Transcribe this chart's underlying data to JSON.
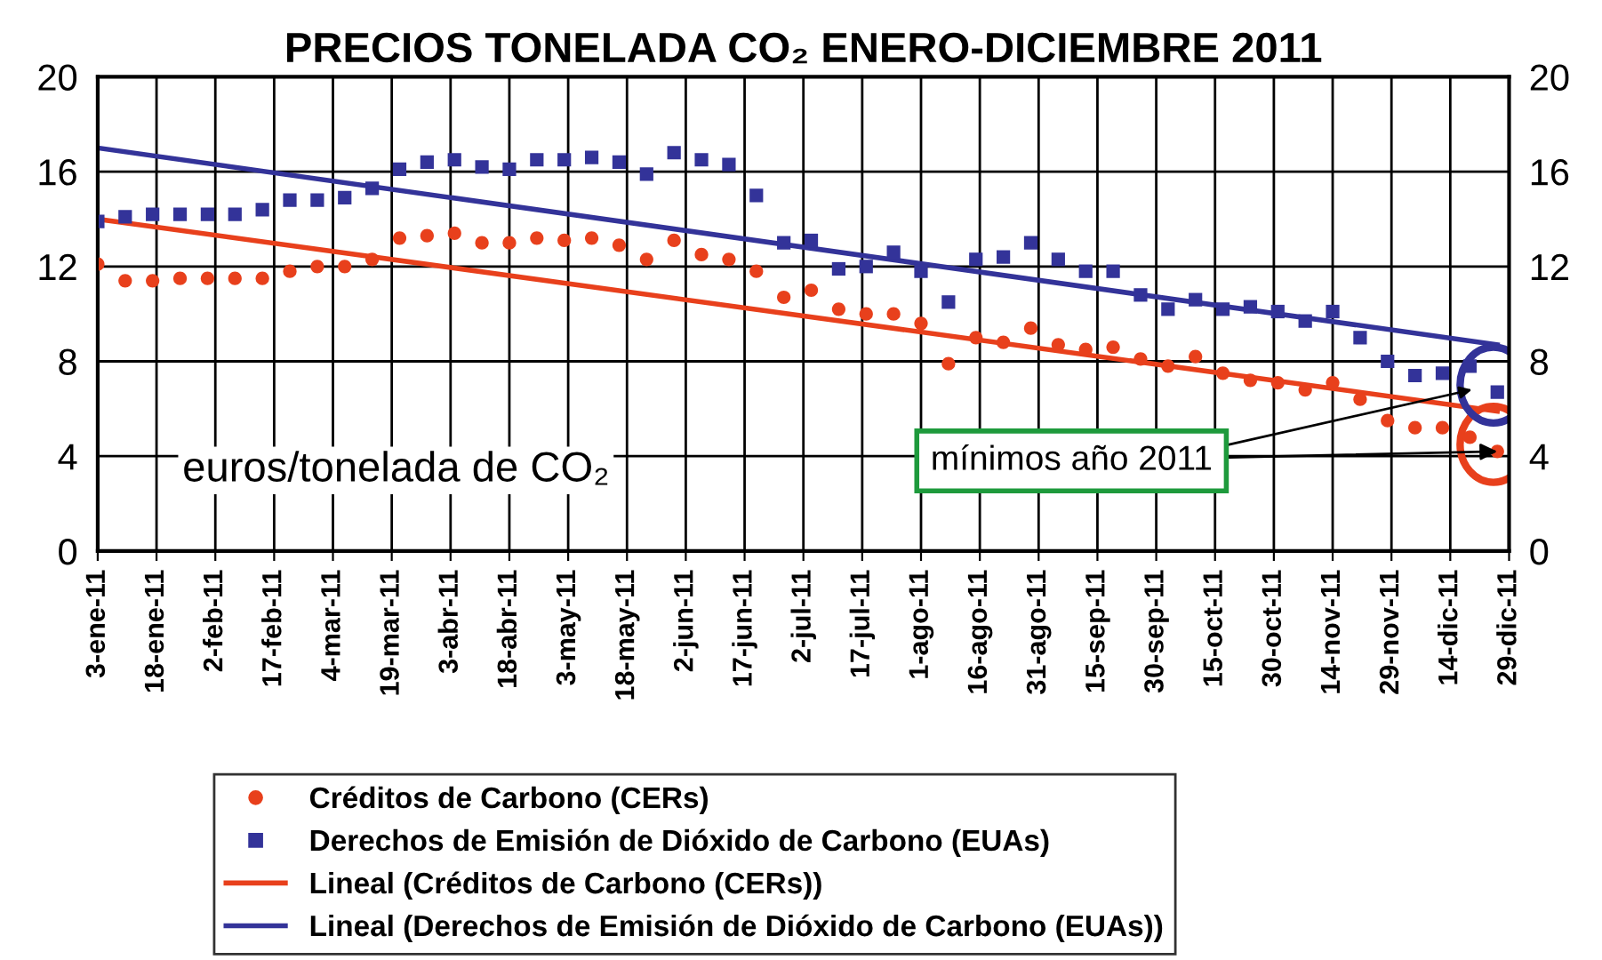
{
  "chart_data": {
    "type": "scatter",
    "title": "PRECIOS TONELADA CO₂ ENERO-DICIEMBRE 2011",
    "x": [
      "2011-01-03",
      "2011-01-10",
      "2011-01-17",
      "2011-01-24",
      "2011-01-31",
      "2011-02-07",
      "2011-02-14",
      "2011-02-21",
      "2011-02-28",
      "2011-03-07",
      "2011-03-14",
      "2011-03-21",
      "2011-03-28",
      "2011-04-04",
      "2011-04-11",
      "2011-04-18",
      "2011-04-25",
      "2011-05-02",
      "2011-05-09",
      "2011-05-16",
      "2011-05-23",
      "2011-05-30",
      "2011-06-06",
      "2011-06-13",
      "2011-06-20",
      "2011-06-27",
      "2011-07-04",
      "2011-07-11",
      "2011-07-18",
      "2011-07-25",
      "2011-08-01",
      "2011-08-08",
      "2011-08-15",
      "2011-08-22",
      "2011-08-29",
      "2011-09-05",
      "2011-09-12",
      "2011-09-19",
      "2011-09-26",
      "2011-10-03",
      "2011-10-10",
      "2011-10-17",
      "2011-10-24",
      "2011-10-31",
      "2011-11-07",
      "2011-11-14",
      "2011-11-21",
      "2011-11-28",
      "2011-12-05",
      "2011-12-12",
      "2011-12-19",
      "2011-12-26"
    ],
    "series": [
      {
        "name": "Créditos de Carbono (CERs)",
        "type": "scatter",
        "marker": "circle",
        "color": "#e8401c",
        "values": [
          12.1,
          11.4,
          11.4,
          11.5,
          11.5,
          11.5,
          11.5,
          11.8,
          12.0,
          12.0,
          12.3,
          13.2,
          13.3,
          13.4,
          13.0,
          13.0,
          13.2,
          13.1,
          13.2,
          12.9,
          12.3,
          13.1,
          12.5,
          12.3,
          11.8,
          10.7,
          11.0,
          10.2,
          10.0,
          10.0,
          9.6,
          7.9,
          9.0,
          8.8,
          9.4,
          8.7,
          8.5,
          8.6,
          8.1,
          7.8,
          8.2,
          7.5,
          7.2,
          7.1,
          6.8,
          7.1,
          6.4,
          5.5,
          5.2,
          5.2,
          4.8,
          4.2
        ]
      },
      {
        "name": "Derechos de Emisión de Dióxido de Carbono (EUAs)",
        "type": "scatter",
        "marker": "square",
        "color": "#333399",
        "values": [
          13.9,
          14.1,
          14.2,
          14.2,
          14.2,
          14.2,
          14.4,
          14.8,
          14.8,
          14.9,
          15.3,
          16.1,
          16.4,
          16.5,
          16.2,
          16.1,
          16.5,
          16.5,
          16.6,
          16.4,
          15.9,
          16.8,
          16.5,
          16.3,
          15.0,
          13.0,
          13.1,
          11.9,
          12.0,
          12.6,
          11.8,
          10.5,
          12.3,
          12.4,
          13.0,
          12.3,
          11.8,
          11.8,
          10.8,
          10.2,
          10.6,
          10.2,
          10.3,
          10.1,
          9.7,
          10.1,
          9.0,
          8.0,
          7.4,
          7.5,
          7.8,
          6.7
        ]
      },
      {
        "name": "Lineal (Créditos de Carbono (CERs))",
        "type": "line",
        "color": "#e8401c",
        "x": [
          "2011-01-03",
          "2011-12-26"
        ],
        "values": [
          14.0,
          5.9
        ]
      },
      {
        "name": "Lineal (Derechos de Emisión de Dióxido de Carbono (EUAs))",
        "type": "line",
        "color": "#333399",
        "x": [
          "2011-01-03",
          "2011-12-26"
        ],
        "values": [
          17.0,
          8.7
        ]
      }
    ],
    "xlim": [
      "2011-01-03",
      "2011-12-29"
    ],
    "xticks": [
      {
        "value": "2011-01-03",
        "label": "3-ene-11"
      },
      {
        "value": "2011-01-18",
        "label": "18-ene-11"
      },
      {
        "value": "2011-02-02",
        "label": "2-feb-11"
      },
      {
        "value": "2011-02-17",
        "label": "17-feb-11"
      },
      {
        "value": "2011-03-04",
        "label": "4-mar-11"
      },
      {
        "value": "2011-03-19",
        "label": "19-mar-11"
      },
      {
        "value": "2011-04-03",
        "label": "3-abr-11"
      },
      {
        "value": "2011-04-18",
        "label": "18-abr-11"
      },
      {
        "value": "2011-05-03",
        "label": "3-may-11"
      },
      {
        "value": "2011-05-18",
        "label": "18-may-11"
      },
      {
        "value": "2011-06-02",
        "label": "2-jun-11"
      },
      {
        "value": "2011-06-17",
        "label": "17-jun-11"
      },
      {
        "value": "2011-07-02",
        "label": "2-jul-11"
      },
      {
        "value": "2011-07-17",
        "label": "17-jul-11"
      },
      {
        "value": "2011-08-01",
        "label": "1-ago-11"
      },
      {
        "value": "2011-08-16",
        "label": "16-ago-11"
      },
      {
        "value": "2011-08-31",
        "label": "31-ago-11"
      },
      {
        "value": "2011-09-15",
        "label": "15-sep-11"
      },
      {
        "value": "2011-09-30",
        "label": "30-sep-11"
      },
      {
        "value": "2011-10-15",
        "label": "15-oct-11"
      },
      {
        "value": "2011-10-30",
        "label": "30-oct-11"
      },
      {
        "value": "2011-11-14",
        "label": "14-nov-11"
      },
      {
        "value": "2011-11-29",
        "label": "29-nov-11"
      },
      {
        "value": "2011-12-14",
        "label": "14-dic-11"
      },
      {
        "value": "2011-12-29",
        "label": "29-dic-11"
      }
    ],
    "ylim": [
      0,
      20
    ],
    "yticks": [
      0,
      4,
      8,
      12,
      16,
      20
    ],
    "y2lim": [
      0,
      20
    ],
    "y2ticks": [
      0,
      4,
      8,
      12,
      16,
      20
    ],
    "grid": true,
    "legend": "bottom",
    "annotations": [
      "euros/tonelada de CO₂",
      {
        "text": "mínimos año 2011",
        "x": "2011-12-26",
        "y": 4.2
      }
    ]
  }
}
